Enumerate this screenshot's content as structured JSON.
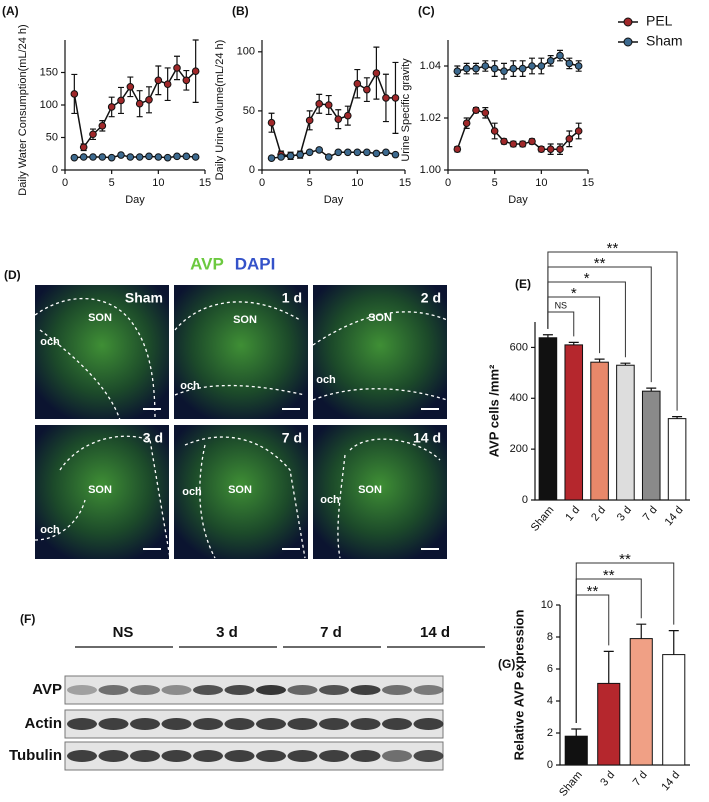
{
  "chart_data": [
    {
      "type": "line",
      "panel_label": "(A)",
      "x_label": "Day",
      "y_label": "Daily Water Consumption(mL/24 h)",
      "x": [
        1,
        2,
        3,
        4,
        5,
        6,
        7,
        8,
        9,
        10,
        11,
        12,
        13,
        14
      ],
      "xlim": [
        0,
        15
      ],
      "xticks": [
        0,
        5,
        10,
        15
      ],
      "ylim": [
        0,
        200
      ],
      "yticks": [
        0,
        50,
        100,
        150
      ],
      "series": [
        {
          "color": "#a0282a",
          "values": [
            117,
            35,
            55,
            68,
            97,
            107,
            128,
            102,
            108,
            138,
            132,
            157,
            138,
            152
          ],
          "errors": [
            30,
            5,
            8,
            8,
            15,
            20,
            15,
            20,
            20,
            22,
            25,
            18,
            15,
            48
          ]
        },
        {
          "color": "#3d6a8f",
          "values": [
            19,
            20,
            20,
            20,
            19,
            23,
            20,
            20,
            21,
            20,
            19,
            21,
            21,
            20
          ],
          "errors": [
            2,
            2,
            2,
            2,
            2,
            2,
            2,
            2,
            2,
            2,
            2,
            2,
            2,
            2
          ]
        }
      ]
    },
    {
      "type": "line",
      "panel_label": "(B)",
      "x_label": "Day",
      "y_label": "Daily Urine Volume(mL/24 h)",
      "x": [
        1,
        2,
        3,
        4,
        5,
        6,
        7,
        8,
        9,
        10,
        11,
        12,
        13,
        14
      ],
      "xlim": [
        0,
        15
      ],
      "xticks": [
        0,
        5,
        10,
        15
      ],
      "ylim": [
        0,
        110
      ],
      "yticks": [
        0,
        50,
        100
      ],
      "series": [
        {
          "color": "#a0282a",
          "values": [
            40,
            13,
            12,
            13,
            42,
            56,
            55,
            43,
            46,
            73,
            68,
            82,
            61,
            61
          ],
          "errors": [
            8,
            3,
            3,
            3,
            8,
            8,
            8,
            8,
            8,
            12,
            10,
            22,
            20,
            30
          ]
        },
        {
          "color": "#3d6a8f",
          "values": [
            10,
            11,
            12,
            13,
            15,
            17,
            11,
            15,
            15,
            15,
            15,
            14,
            15,
            13
          ],
          "errors": [
            1.5,
            1.5,
            1.5,
            1.5,
            1.5,
            1.5,
            1.5,
            1.5,
            1.5,
            1.5,
            1.5,
            1.5,
            1.5,
            1.5
          ]
        }
      ]
    },
    {
      "type": "line",
      "panel_label": "(C)",
      "x_label": "Day",
      "y_label": "Urine Specific gravity",
      "legend": "outside-upper-right",
      "x": [
        1,
        2,
        3,
        4,
        5,
        6,
        7,
        8,
        9,
        10,
        11,
        12,
        13,
        14
      ],
      "xlim": [
        0,
        15
      ],
      "xticks": [
        0,
        5,
        10,
        15
      ],
      "ylim": [
        1,
        1.05
      ],
      "yticks": [
        {
          "value": 1,
          "label": "1.00"
        },
        1.02,
        1.04
      ],
      "series": [
        {
          "name": "PEL",
          "color": "#a0282a",
          "values": [
            1.008,
            1.018,
            1.023,
            1.022,
            1.015,
            1.011,
            1.01,
            1.01,
            1.011,
            1.008,
            1.008,
            1.008,
            1.012,
            1.015
          ],
          "errors": [
            0.001,
            0.002,
            0.001,
            0.002,
            0.003,
            0.001,
            0.001,
            0.001,
            0.001,
            0.001,
            0.002,
            0.002,
            0.003,
            0.003
          ]
        },
        {
          "name": "Sham",
          "color": "#3d6a8f",
          "values": [
            1.038,
            1.039,
            1.039,
            1.04,
            1.039,
            1.038,
            1.039,
            1.039,
            1.04,
            1.04,
            1.042,
            1.044,
            1.041,
            1.04
          ],
          "errors": [
            0.002,
            0.002,
            0.002,
            0.002,
            0.003,
            0.003,
            0.003,
            0.003,
            0.003,
            0.003,
            0.002,
            0.002,
            0.002,
            0.002
          ]
        }
      ]
    },
    {
      "type": "bar",
      "panel_label": "(E)",
      "y_label": "AVP cells /mm²",
      "categories": [
        "Sham",
        "1 d",
        "2 d",
        "3 d",
        "7 d",
        "14 d"
      ],
      "values": [
        638,
        610,
        542,
        530,
        428,
        320
      ],
      "errors": [
        12,
        10,
        12,
        8,
        12,
        8
      ],
      "colors": [
        "#111111",
        "#b5272d",
        "#e8886a",
        "#dddddd",
        "#8a8a8a",
        "#ffffff"
      ],
      "ylim": [
        0,
        700
      ],
      "yticks": [
        0,
        200,
        400,
        600
      ],
      "annotations": [
        {
          "label": "NS",
          "categories": [
            "Sham",
            "1 d"
          ]
        },
        {
          "label": "*",
          "categories": [
            "Sham",
            "2 d"
          ]
        },
        {
          "label": "*",
          "categories": [
            "Sham",
            "3 d"
          ]
        },
        {
          "label": "**",
          "categories": [
            "Sham",
            "7 d"
          ]
        },
        {
          "label": "**",
          "categories": [
            "Sham",
            "14 d"
          ]
        }
      ]
    },
    {
      "type": "bar",
      "panel_label": "(G)",
      "y_label": "Relative AVP expression",
      "categories": [
        "Sham",
        "3 d",
        "7 d",
        "14 d"
      ],
      "values": [
        1.8,
        5.1,
        7.9,
        6.9
      ],
      "errors": [
        0.45,
        2,
        0.9,
        1.5
      ],
      "colors": [
        "#111111",
        "#b5272d",
        "#f0a085",
        "#ffffff"
      ],
      "ylim": [
        0,
        10
      ],
      "yticks": [
        0,
        2,
        4,
        6,
        8,
        10
      ],
      "annotations": [
        {
          "label": "**",
          "categories": [
            "Sham",
            "3 d"
          ]
        },
        {
          "label": "**",
          "categories": [
            "Sham",
            "7 d"
          ]
        },
        {
          "label": "**",
          "categories": [
            "Sham",
            "14 d"
          ]
        }
      ]
    }
  ],
  "micrograph": {
    "panel_label": "(D)",
    "channels": [
      "AVP",
      "DAPI"
    ],
    "channel_colors": [
      "#6cc93f",
      "#3452c9"
    ],
    "panels": [
      {
        "label": "Sham",
        "regions": [
          "och",
          "SON"
        ]
      },
      {
        "label": "1 d",
        "regions": [
          "och",
          "SON"
        ]
      },
      {
        "label": "2 d",
        "regions": [
          "och",
          "SON"
        ]
      },
      {
        "label": "3 d",
        "regions": [
          "och",
          "SON"
        ]
      },
      {
        "label": "7 d",
        "regions": [
          "och",
          "SON"
        ]
      },
      {
        "label": "14 d",
        "regions": [
          "och",
          "SON"
        ]
      }
    ]
  },
  "blot": {
    "panel_label": "(F)",
    "groups": [
      "NS",
      "3 d",
      "7 d",
      "14 d"
    ],
    "rows": [
      "AVP",
      "Actin",
      "Tubulin"
    ]
  }
}
